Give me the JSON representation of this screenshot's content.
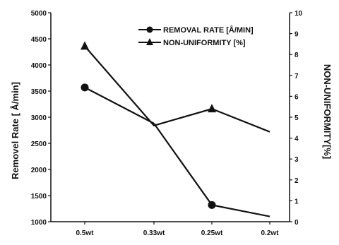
{
  "chart_data": {
    "type": "line",
    "categories": [
      "0.5wt",
      "0.33wt",
      "0.25wt",
      "0.2wt"
    ],
    "left_axis": {
      "label": "Removel Rate   [ Å/min]",
      "ylim": [
        1000,
        5000
      ],
      "ticks": [
        "1000",
        "1500",
        "2000",
        "2500",
        "3000",
        "3500",
        "4000",
        "4500",
        "5000"
      ]
    },
    "right_axis": {
      "label": "NON-UNIFORMITY[%]",
      "ylim": [
        0,
        10
      ],
      "ticks": [
        "0",
        "1",
        "2",
        "3",
        "4",
        "5",
        "6",
        "7",
        "8",
        "9",
        "10"
      ]
    },
    "series": [
      {
        "name": "REMOVAL RATE [Å/MIN]",
        "axis": "left",
        "marker": "circle",
        "values": [
          3570,
          null,
          1320,
          null
        ]
      },
      {
        "name": "NON-UNIFORMITY [%]",
        "axis": "right",
        "marker": "triangle",
        "values": [
          8.4,
          null,
          5.4,
          null
        ]
      }
    ],
    "segments": [
      {
        "axis": "left",
        "points": [
          [
            0,
            3570
          ],
          [
            1,
            2880
          ]
        ]
      },
      {
        "axis": "left",
        "points": [
          [
            1,
            2880
          ],
          [
            2,
            1320
          ],
          [
            3,
            1100
          ]
        ]
      },
      {
        "axis": "right",
        "points": [
          [
            0,
            8.4
          ],
          [
            1,
            4.6
          ],
          [
            2,
            5.4
          ],
          [
            3,
            4.3
          ]
        ]
      }
    ],
    "legend_position": "top-right",
    "grid": false
  }
}
